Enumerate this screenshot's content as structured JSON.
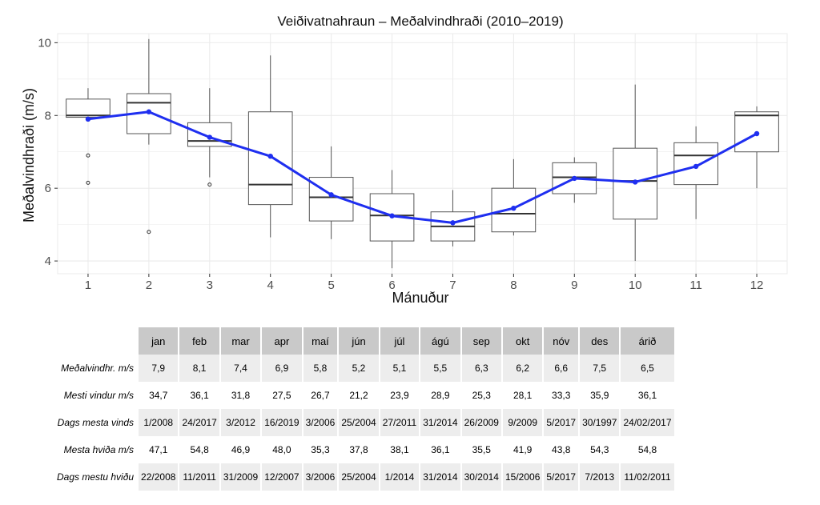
{
  "chart_data": {
    "type": "box",
    "title": "Veiðivatnahraun – Meðalvindhraði (2010–2019)",
    "xlabel": "Mánuður",
    "ylabel": "Meðalvindhraði (m/s)",
    "categories": [
      "1",
      "2",
      "3",
      "4",
      "5",
      "6",
      "7",
      "8",
      "9",
      "10",
      "11",
      "12"
    ],
    "y_ticks": [
      4,
      6,
      8,
      10
    ],
    "ylim": [
      3.65,
      10.25
    ],
    "grid": true,
    "boxes": [
      {
        "whisker_low": 7.95,
        "q1": 7.95,
        "median": 8.0,
        "q3": 8.45,
        "whisker_high": 8.75,
        "outliers": [
          6.9,
          6.15
        ]
      },
      {
        "whisker_low": 7.2,
        "q1": 7.5,
        "median": 8.35,
        "q3": 8.6,
        "whisker_high": 10.1,
        "outliers": [
          4.8
        ]
      },
      {
        "whisker_low": 6.3,
        "q1": 7.15,
        "median": 7.3,
        "q3": 7.8,
        "whisker_high": 8.75,
        "outliers": [
          6.1
        ]
      },
      {
        "whisker_low": 4.65,
        "q1": 5.55,
        "median": 6.1,
        "q3": 8.1,
        "whisker_high": 9.65,
        "outliers": []
      },
      {
        "whisker_low": 4.6,
        "q1": 5.1,
        "median": 5.75,
        "q3": 6.3,
        "whisker_high": 7.15,
        "outliers": []
      },
      {
        "whisker_low": 3.8,
        "q1": 4.55,
        "median": 5.25,
        "q3": 5.85,
        "whisker_high": 6.5,
        "outliers": []
      },
      {
        "whisker_low": 4.4,
        "q1": 4.55,
        "median": 4.95,
        "q3": 5.35,
        "whisker_high": 5.95,
        "outliers": []
      },
      {
        "whisker_low": 4.7,
        "q1": 4.8,
        "median": 5.3,
        "q3": 6.0,
        "whisker_high": 6.8,
        "outliers": []
      },
      {
        "whisker_low": 5.6,
        "q1": 5.85,
        "median": 6.3,
        "q3": 6.7,
        "whisker_high": 6.85,
        "outliers": []
      },
      {
        "whisker_low": 4.0,
        "q1": 5.15,
        "median": 6.2,
        "q3": 7.1,
        "whisker_high": 8.85,
        "outliers": []
      },
      {
        "whisker_low": 5.15,
        "q1": 6.1,
        "median": 6.9,
        "q3": 7.25,
        "whisker_high": 7.7,
        "outliers": []
      },
      {
        "whisker_low": 6.0,
        "q1": 7.0,
        "median": 8.0,
        "q3": 8.1,
        "whisker_high": 8.25,
        "outliers": []
      }
    ],
    "mean_line": {
      "color": "#1f2ff0",
      "values": [
        7.9,
        8.1,
        7.4,
        6.88,
        5.82,
        5.24,
        5.05,
        5.45,
        6.27,
        6.17,
        6.6,
        7.5
      ]
    },
    "colors": {
      "box_stroke": "#555555",
      "median": "#333333",
      "grid": "#ebebeb"
    }
  },
  "table": {
    "headers": [
      "jan",
      "feb",
      "mar",
      "apr",
      "maí",
      "jún",
      "júl",
      "ágú",
      "sep",
      "okt",
      "nóv",
      "des",
      "árið"
    ],
    "rows": [
      {
        "label": "Meðalvindhr. m/s",
        "values": [
          "7,9",
          "8,1",
          "7,4",
          "6,9",
          "5,8",
          "5,2",
          "5,1",
          "5,5",
          "6,3",
          "6,2",
          "6,6",
          "7,5",
          "6,5"
        ]
      },
      {
        "label": "Mesti vindur m/s",
        "values": [
          "34,7",
          "36,1",
          "31,8",
          "27,5",
          "26,7",
          "21,2",
          "23,9",
          "28,9",
          "25,3",
          "28,1",
          "33,3",
          "35,9",
          "36,1"
        ]
      },
      {
        "label": "Dags mesta vinds",
        "values": [
          "1/2008",
          "24/2017",
          "3/2012",
          "16/2019",
          "3/2006",
          "25/2004",
          "27/2011",
          "31/2014",
          "26/2009",
          "9/2009",
          "5/2017",
          "30/1997",
          "24/02/2017"
        ]
      },
      {
        "label": "Mesta hviða m/s",
        "values": [
          "47,1",
          "54,8",
          "46,9",
          "48,0",
          "35,3",
          "37,8",
          "38,1",
          "36,1",
          "35,5",
          "41,9",
          "43,8",
          "54,3",
          "54,8"
        ]
      },
      {
        "label": "Dags mestu hviðu",
        "values": [
          "22/2008",
          "11/2011",
          "31/2009",
          "12/2007",
          "3/2006",
          "25/2004",
          "1/2014",
          "31/2014",
          "30/2014",
          "15/2006",
          "5/2017",
          "7/2013",
          "11/02/2011"
        ]
      }
    ]
  }
}
